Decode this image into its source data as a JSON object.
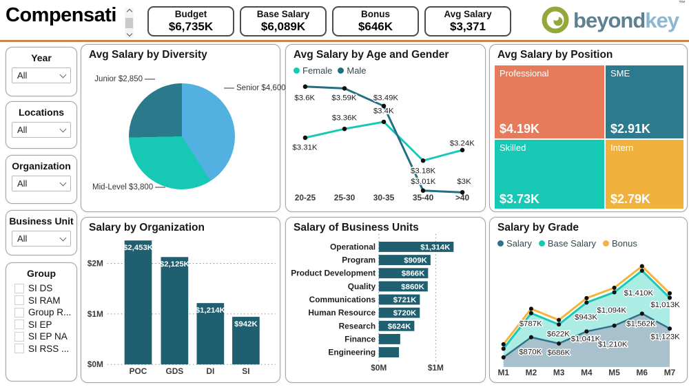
{
  "header": {
    "title": "Compensati",
    "kpis": [
      {
        "label": "Budget",
        "value": "$6,735K"
      },
      {
        "label": "Base Salary",
        "value": "$6,089K"
      },
      {
        "label": "Bonus",
        "value": "$646K"
      },
      {
        "label": "Avg Salary",
        "value": "$3,371"
      }
    ],
    "logo": {
      "beyond": "beyond",
      "key": "key",
      "tm": "™"
    }
  },
  "filters": {
    "year": {
      "label": "Year",
      "value": "All"
    },
    "locations": {
      "label": "Locations",
      "value": "All"
    },
    "organization": {
      "label": "Organization",
      "value": "All"
    },
    "business_unit": {
      "label": "Business Unit",
      "value": "All"
    },
    "group": {
      "label": "Group",
      "items": [
        "SI DS",
        "SI RAM",
        "Group R...",
        "SI EP",
        "SI EP NA",
        "SI RSS ..."
      ]
    }
  },
  "chart_data": [
    {
      "type": "pie",
      "title": "Avg Salary by Diversity",
      "slices": [
        {
          "label": "Senior",
          "value": 4600,
          "display": "Senior $4,600",
          "color": "#53b1e1"
        },
        {
          "label": "Mid-Level",
          "value": 3800,
          "display": "Mid-Level $3,800",
          "color": "#17c9b5"
        },
        {
          "label": "Junior",
          "value": 2850,
          "display": "Junior $2,850",
          "color": "#2a7a8c"
        }
      ]
    },
    {
      "type": "line",
      "title": "Avg Salary by Age and Gender",
      "categories": [
        "20-25",
        "25-30",
        "30-35",
        "35-40",
        ">40"
      ],
      "ylim": [
        2.9,
        3.7
      ],
      "series": [
        {
          "name": "Female",
          "color": "#17c9b5",
          "values": [
            3.31,
            3.36,
            3.4,
            3.18,
            3.24
          ],
          "labels": [
            "$3.31K",
            "$3.36K",
            "$3.4K",
            "$3.18K",
            "$3.24K"
          ]
        },
        {
          "name": "Male",
          "color": "#236e82",
          "values": [
            3.6,
            3.59,
            3.49,
            3.01,
            3.0
          ],
          "labels": [
            "$3.6K",
            "$3.59K",
            "$3.49K",
            "$3.01K",
            "$3K"
          ]
        }
      ]
    },
    {
      "type": "treemap",
      "title": "Avg Salary by Position",
      "nodes": [
        {
          "label": "Professional",
          "value": 4.19,
          "display": "$4.19K",
          "color": "#e87a5c"
        },
        {
          "label": "SME",
          "value": 2.91,
          "display": "$2.91K",
          "color": "#2b7a8e"
        },
        {
          "label": "Skilled",
          "value": 3.73,
          "display": "$3.73K",
          "color": "#17c9b5"
        },
        {
          "label": "Intern",
          "value": 2.79,
          "display": "$2.79K",
          "color": "#f0b23d"
        }
      ]
    },
    {
      "type": "bar",
      "title": "Salary by Organization",
      "categories": [
        "POC",
        "GDS",
        "DI",
        "SI"
      ],
      "values": [
        2453,
        2125,
        1214,
        942
      ],
      "labels": [
        "$2,453K",
        "$2,125K",
        "$1,214K",
        "$942K"
      ],
      "color": "#205f70",
      "yticks": [
        "$0M",
        "$1M",
        "$2M"
      ],
      "ylim": [
        0,
        2500
      ]
    },
    {
      "type": "bar-horizontal",
      "title": "Salary of Business Units",
      "categories": [
        "Operational",
        "Program",
        "Product Development",
        "Quality",
        "Communications",
        "Human Resource",
        "Research",
        "Finance",
        "Engineering"
      ],
      "values": [
        1314,
        909,
        866,
        860,
        721,
        720,
        624,
        376,
        355
      ],
      "labels": [
        "$1,314K",
        "$909K",
        "$866K",
        "$860K",
        "$721K",
        "$720K",
        "$624K",
        "",
        ""
      ],
      "color": "#205f70",
      "xticks": [
        "$0M",
        "$1M"
      ],
      "xlim": [
        0,
        1750
      ]
    },
    {
      "type": "area",
      "title": "Salary by Grade",
      "categories": [
        "M1",
        "M2",
        "M3",
        "M4",
        "M5",
        "M6",
        "M7"
      ],
      "series": [
        {
          "name": "Salary",
          "color": "#2e7389",
          "area": "#a9becb",
          "axis": "secondary",
          "values": [
            280,
            870,
            686,
            1041,
            1210,
            1562,
            1123
          ],
          "labels": [
            "",
            "$870K",
            "$686K",
            "$1,041K",
            "$1,210K",
            "$1,562K",
            "$1,123K"
          ]
        },
        {
          "name": "Base Salary",
          "color": "#17c9b5",
          "area": "#a7e8e0",
          "values": [
            267,
            787,
            622,
            943,
            1094,
            1410,
            1013
          ],
          "labels": [
            "",
            "$787K",
            "$622K",
            "$943K",
            "$1,094K",
            "$1,410K",
            "$1,013K"
          ]
        },
        {
          "name": "Bonus",
          "color": "#f5b33c",
          "values": [
            13,
            83,
            64,
            98,
            116,
            152,
            110
          ],
          "labels": [
            "",
            "",
            "",
            "",
            "",
            "",
            ""
          ]
        }
      ]
    }
  ]
}
